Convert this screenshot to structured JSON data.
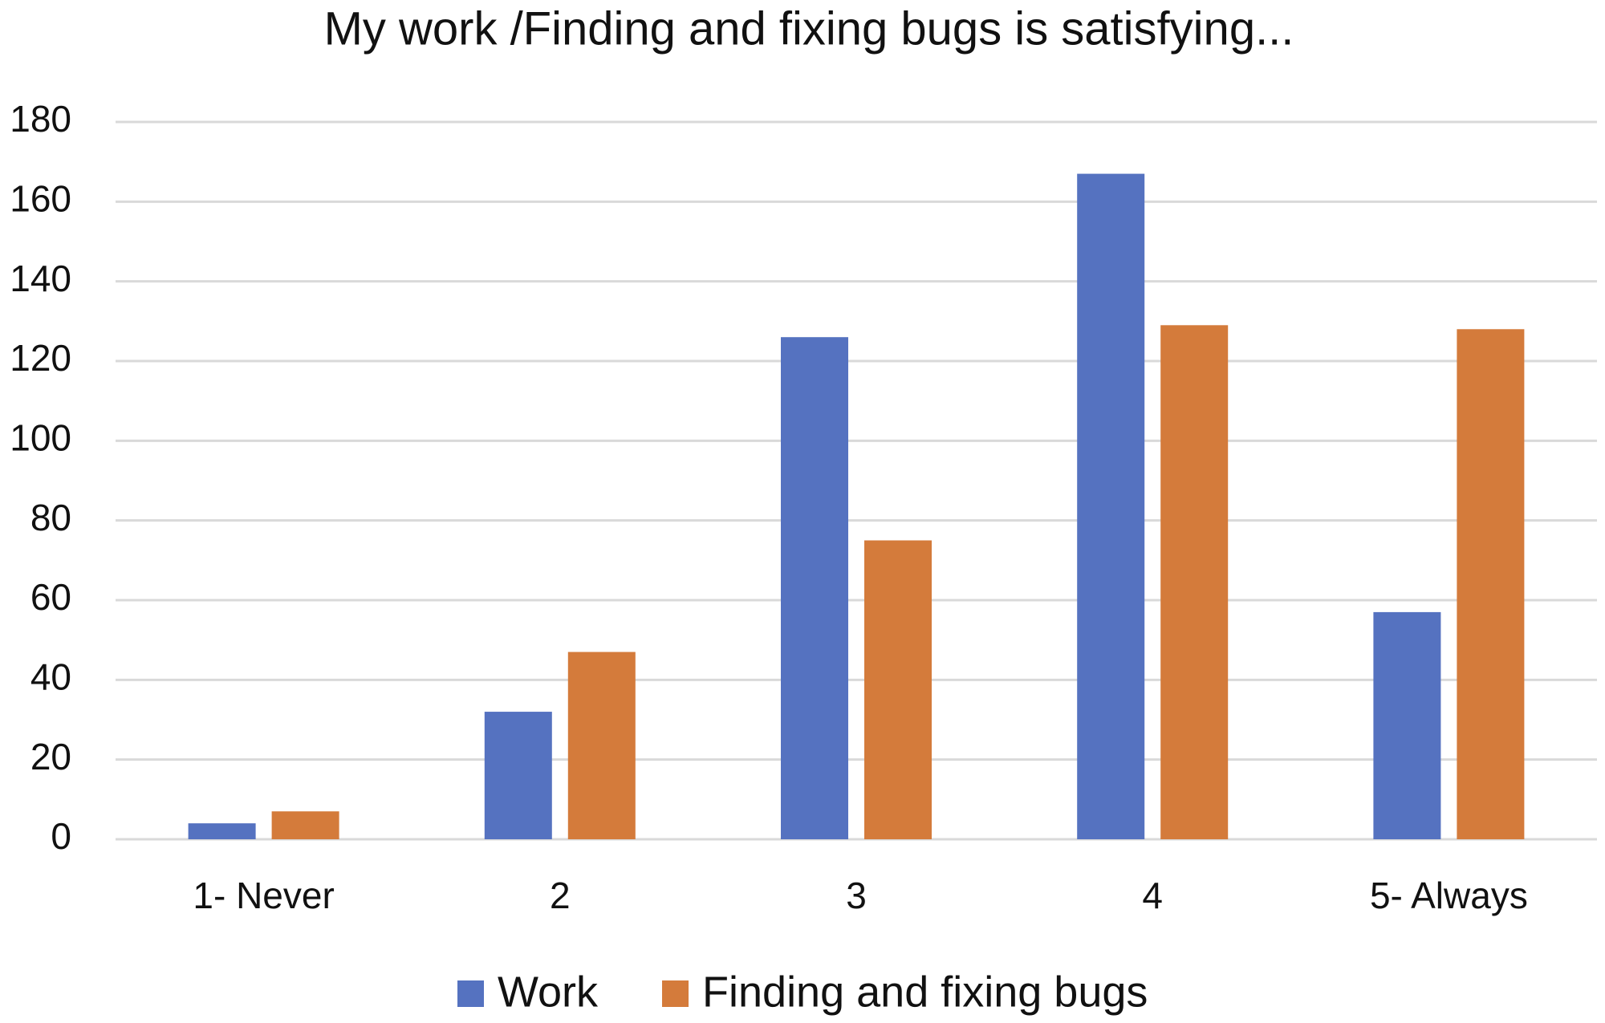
{
  "chart_data": {
    "type": "bar",
    "title": "My work /Finding and fixing bugs is satisfying...",
    "categories": [
      "1- Never",
      "2",
      "3",
      "4",
      "5- Always"
    ],
    "series": [
      {
        "name": "Work",
        "color": "#5572c0",
        "values": [
          4,
          32,
          126,
          167,
          57
        ]
      },
      {
        "name": "Finding and fixing bugs",
        "color": "#d47b3b",
        "values": [
          7,
          47,
          75,
          129,
          128
        ]
      }
    ],
    "ylim": [
      0,
      180
    ],
    "yticks": [
      0,
      20,
      40,
      60,
      80,
      100,
      120,
      140,
      160,
      180
    ],
    "grid": true,
    "legend": "bottom"
  }
}
